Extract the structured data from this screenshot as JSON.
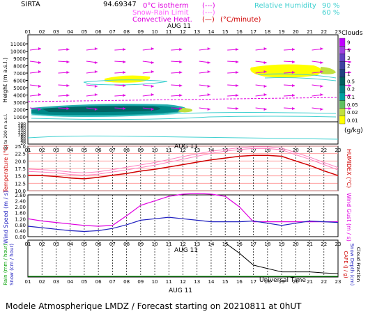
{
  "header": {
    "station": "SIRTA",
    "coords": "94.69347",
    "legend_isotherm": "0°C isotherm",
    "legend_isotherm_sym": "(---)",
    "legend_snow": "Snow-Rain Limit",
    "legend_snow_sym": "(---)",
    "legend_conv": "Convective Heat.",
    "legend_conv_sym": "(—)",
    "legend_conv_unit": "(°C/minute)",
    "legend_rh": "Relative Humidity",
    "rh_90": "90 %",
    "rh_60": "60 %",
    "date_label": "AUG 11"
  },
  "footer": {
    "universal_time": "Universal Time",
    "date_label": "AUG 11",
    "title": "Modele Atmospherique LMDZ / Forecast starting on 20210811 at 0hUT"
  },
  "colorbar": {
    "title": "Clouds",
    "unit": "(g/kg)",
    "levels": [
      "9",
      "5",
      "3",
      "2",
      "1",
      "0.5",
      "0.2",
      "0.1",
      "0.05",
      "0.02",
      "0.01"
    ],
    "colors": [
      "#c000ff",
      "#a040e0",
      "#6040c0",
      "#4040a0",
      "#204080",
      "#006060",
      "#008080",
      "#00a0a0",
      "#60c060",
      "#c0e040",
      "#ffff00"
    ]
  },
  "chart_data": {
    "type": "line",
    "hours": [
      "01",
      "02",
      "03",
      "04",
      "05",
      "06",
      "07",
      "08",
      "09",
      "10",
      "11",
      "12",
      "13",
      "14",
      "15",
      "16",
      "17",
      "18",
      "19",
      "20",
      "21",
      "22",
      "23"
    ],
    "panels": [
      {
        "name": "clouds",
        "ylabel": "Height (m a.s.l.)",
        "yticks": [
          "11000",
          "10000",
          "9000",
          "8000",
          "7000",
          "6000",
          "5000",
          "4000",
          "3000",
          "2000",
          "1000"
        ],
        "lower_ylabel": "Up to 200 m a.s.l.",
        "lower_yticks": [
          "200",
          "180",
          "160",
          "140",
          "120",
          "100",
          "80",
          "60",
          "40",
          "20"
        ]
      },
      {
        "name": "temperature",
        "ylabel": "Temperature (°C)",
        "ylabel_right": "HUMIDEX (°C)",
        "yticks": [
          "25.0",
          "22.5",
          "20.0",
          "17.5",
          "15.0",
          "12.5",
          "10.0"
        ],
        "ylim": [
          10,
          25
        ],
        "series": [
          {
            "values": [
              15.2,
              15.1,
              14.8,
              14.3,
              14.0,
              14.5,
              15.2,
              15.8,
              16.6,
              17.2,
              18.0,
              18.8,
              19.6,
              20.4,
              21.0,
              21.6,
              21.9,
              21.9,
              21.6,
              20.0,
              18.5,
              16.7,
              15.1
            ],
            "color": "#d00000"
          },
          {
            "values": [
              16.5,
              16.3,
              16.0,
              15.5,
              15.2,
              15.6,
              16.3,
              17.0,
              17.8,
              18.6,
              19.6,
              20.6,
              21.6,
              22.6,
              23.3,
              23.9,
              24.2,
              24.2,
              23.8,
              22.1,
              20.6,
              18.8,
              17.0
            ],
            "color": "#ff80c0"
          },
          {
            "values": [
              17.3,
              17.1,
              16.8,
              16.3,
              16.0,
              16.4,
              17.1,
              17.9,
              18.7,
              19.5,
              20.5,
              21.5,
              22.4,
              23.3,
              23.9,
              24.5,
              24.8,
              24.8,
              24.4,
              22.8,
              21.3,
              19.5,
              17.8
            ],
            "color": "#ff80c0"
          }
        ]
      },
      {
        "name": "wind",
        "ylabel": "Wind Speed (m / s)",
        "ylabel_right": "Wind Gust (m / s)",
        "yticks": [
          "2.80",
          "2.40",
          "2.00",
          "1.60",
          "1.20",
          "0.80",
          "0.40",
          "0.00"
        ],
        "ylim": [
          0,
          2.8
        ],
        "series": [
          {
            "values": [
              1.2,
              1.05,
              0.95,
              0.85,
              0.75,
              0.7,
              0.75,
              1.4,
              2.1,
              2.4,
              2.7,
              2.85,
              2.9,
              2.85,
              2.7,
              2.0,
              1.0,
              1.0,
              1.0,
              1.0,
              1.0,
              1.0,
              1.0
            ],
            "color": "#e000e0"
          },
          {
            "values": [
              0.7,
              0.6,
              0.5,
              0.4,
              0.35,
              0.4,
              0.55,
              0.8,
              1.1,
              1.2,
              1.3,
              1.2,
              1.1,
              1.0,
              1.0,
              1.0,
              1.05,
              0.9,
              0.75,
              0.9,
              1.05,
              1.0,
              0.95
            ],
            "color": "#2020c0"
          }
        ]
      },
      {
        "name": "rain",
        "ylabel": "Rain (mm / hour)",
        "ylabel2": "Snow (cm / hour)",
        "ylabel_right": "CAPE (J / g)",
        "ylabel_right2": "Snow Depth (cm)",
        "ylabel_right3": "Cloud Fraction",
        "series": [
          {
            "values": [
              0,
              0,
              0,
              0,
              0,
              0,
              0,
              0,
              0,
              0,
              0,
              0,
              0,
              0,
              1.0,
              0.7,
              0.35,
              0.25,
              0.15,
              0.15,
              0.15,
              0.12,
              0.1
            ],
            "color": "#000000"
          }
        ]
      }
    ]
  }
}
